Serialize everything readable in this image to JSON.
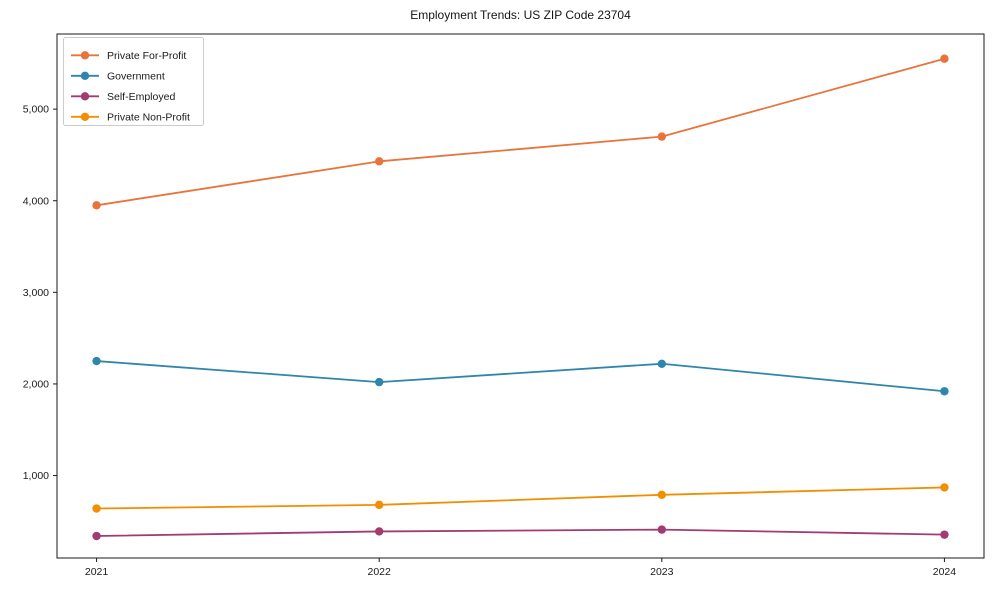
{
  "chart_data": {
    "type": "line",
    "title": "Employment Trends: US ZIP Code 23704",
    "xlabel": "",
    "ylabel": "",
    "grid": false,
    "legend_position": "upper left",
    "x": [
      2021,
      2022,
      2023,
      2024
    ],
    "x_tick_labels": [
      "2021",
      "2022",
      "2023",
      "2024"
    ],
    "y_ticks": [
      1000,
      2000,
      3000,
      4000,
      5000
    ],
    "y_tick_labels": [
      "1,000",
      "2,000",
      "3,000",
      "4,000",
      "5,000"
    ],
    "xlim": [
      2020.86,
      2024.14
    ],
    "ylim": [
      100,
      5820
    ],
    "series": [
      {
        "name": "Private For-Profit",
        "color": "#E8743B",
        "values": [
          3950,
          4430,
          4700,
          5550
        ]
      },
      {
        "name": "Government",
        "color": "#2E86AB",
        "values": [
          2250,
          2020,
          2220,
          1920
        ]
      },
      {
        "name": "Self-Employed",
        "color": "#A23B72",
        "values": [
          340,
          390,
          410,
          355
        ]
      },
      {
        "name": "Private Non-Profit",
        "color": "#F18F01",
        "values": [
          640,
          680,
          790,
          870
        ]
      }
    ],
    "axis_color": "#1a1a1a",
    "tick_label_color": "#1a1a1a",
    "legend_border_color": "#cccccc",
    "background_color": "#ffffff"
  }
}
